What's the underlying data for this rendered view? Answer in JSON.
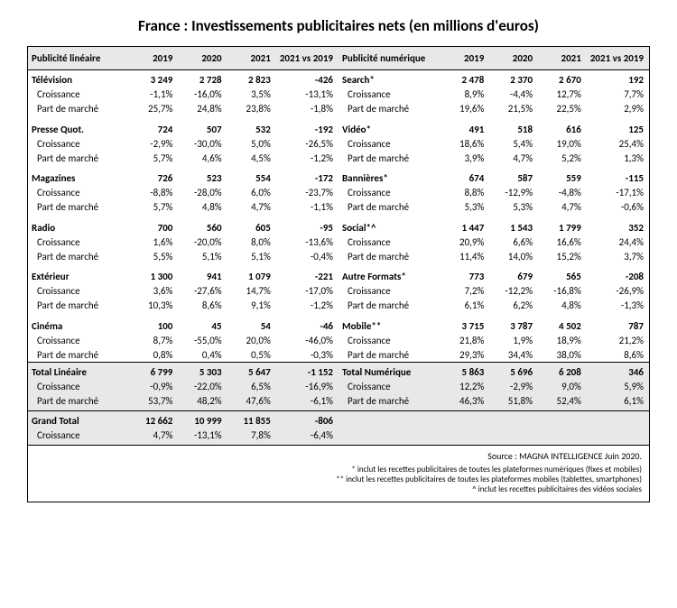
{
  "title": "France : Investissements publicitaires nets (en millions d'euros)",
  "col_headers": {
    "linear_label": "Publicité linéaire",
    "digital_label": "Publicité numérique",
    "y2019": "2019",
    "y2020": "2020",
    "y2021": "2021",
    "delta": "2021 vs 2019"
  },
  "row_sub_labels": {
    "growth": "Croissance",
    "share": "Part de marché"
  },
  "linear": [
    {
      "name": "Télévision",
      "v2019": "3 249",
      "v2020": "2 728",
      "v2021": "2 823",
      "delta": "-426",
      "g2019": "-1,1%",
      "g2020": "-16,0%",
      "g2021": "3,5%",
      "gdelta": "-13,1%",
      "s2019": "25,7%",
      "s2020": "24,8%",
      "s2021": "23,8%",
      "sdelta": "-1,8%"
    },
    {
      "name": "Presse Quot.",
      "v2019": "724",
      "v2020": "507",
      "v2021": "532",
      "delta": "-192",
      "g2019": "-2,9%",
      "g2020": "-30,0%",
      "g2021": "5,0%",
      "gdelta": "-26,5%",
      "s2019": "5,7%",
      "s2020": "4,6%",
      "s2021": "4,5%",
      "sdelta": "-1,2%"
    },
    {
      "name": "Magazines",
      "v2019": "726",
      "v2020": "523",
      "v2021": "554",
      "delta": "-172",
      "g2019": "-8,8%",
      "g2020": "-28,0%",
      "g2021": "6,0%",
      "gdelta": "-23,7%",
      "s2019": "5,7%",
      "s2020": "4,8%",
      "s2021": "4,7%",
      "sdelta": "-1,1%"
    },
    {
      "name": "Radio",
      "v2019": "700",
      "v2020": "560",
      "v2021": "605",
      "delta": "-95",
      "g2019": "1,6%",
      "g2020": "-20,0%",
      "g2021": "8,0%",
      "gdelta": "-13,6%",
      "s2019": "5,5%",
      "s2020": "5,1%",
      "s2021": "5,1%",
      "sdelta": "-0,4%"
    },
    {
      "name": "Extérieur",
      "v2019": "1 300",
      "v2020": "941",
      "v2021": "1 079",
      "delta": "-221",
      "g2019": "3,6%",
      "g2020": "-27,6%",
      "g2021": "14,7%",
      "gdelta": "-17,0%",
      "s2019": "10,3%",
      "s2020": "8,6%",
      "s2021": "9,1%",
      "sdelta": "-1,2%"
    },
    {
      "name": "Cinéma",
      "v2019": "100",
      "v2020": "45",
      "v2021": "54",
      "delta": "-46",
      "g2019": "8,7%",
      "g2020": "-55,0%",
      "g2021": "20,0%",
      "gdelta": "-46,0%",
      "s2019": "0,8%",
      "s2020": "0,4%",
      "s2021": "0,5%",
      "sdelta": "-0,3%"
    }
  ],
  "linear_total": {
    "name": "Total Linéaire",
    "v2019": "6 799",
    "v2020": "5 303",
    "v2021": "5 647",
    "delta": "-1 152",
    "g2019": "-0,9%",
    "g2020": "-22,0%",
    "g2021": "6,5%",
    "gdelta": "-16,9%",
    "s2019": "53,7%",
    "s2020": "48,2%",
    "s2021": "47,6%",
    "sdelta": "-6,1%"
  },
  "digital": [
    {
      "name": "Search*",
      "v2019": "2 478",
      "v2020": "2 370",
      "v2021": "2 670",
      "delta": "192",
      "g2019": "8,9%",
      "g2020": "-4,4%",
      "g2021": "12,7%",
      "gdelta": "7,7%",
      "s2019": "19,6%",
      "s2020": "21,5%",
      "s2021": "22,5%",
      "sdelta": "2,9%"
    },
    {
      "name": "Vidéo*",
      "v2019": "491",
      "v2020": "518",
      "v2021": "616",
      "delta": "125",
      "g2019": "18,6%",
      "g2020": "5,4%",
      "g2021": "19,0%",
      "gdelta": "25,4%",
      "s2019": "3,9%",
      "s2020": "4,7%",
      "s2021": "5,2%",
      "sdelta": "1,3%"
    },
    {
      "name": "Bannières*",
      "v2019": "674",
      "v2020": "587",
      "v2021": "559",
      "delta": "-115",
      "g2019": "8,8%",
      "g2020": "-12,9%",
      "g2021": "-4,8%",
      "gdelta": "-17,1%",
      "s2019": "5,3%",
      "s2020": "5,3%",
      "s2021": "4,7%",
      "sdelta": "-0,6%"
    },
    {
      "name": "Social*^",
      "v2019": "1 447",
      "v2020": "1 543",
      "v2021": "1 799",
      "delta": "352",
      "g2019": "20,9%",
      "g2020": "6,6%",
      "g2021": "16,6%",
      "gdelta": "24,4%",
      "s2019": "11,4%",
      "s2020": "14,0%",
      "s2021": "15,2%",
      "sdelta": "3,7%"
    },
    {
      "name": "Autre Formats*",
      "v2019": "773",
      "v2020": "679",
      "v2021": "565",
      "delta": "-208",
      "g2019": "7,2%",
      "g2020": "-12,2%",
      "g2021": "-16,8%",
      "gdelta": "-26,9%",
      "s2019": "6,1%",
      "s2020": "6,2%",
      "s2021": "4,8%",
      "sdelta": "-1,3%"
    },
    {
      "name": "Mobile**",
      "v2019": "3 715",
      "v2020": "3 787",
      "v2021": "4 502",
      "delta": "787",
      "g2019": "21,8%",
      "g2020": "1,9%",
      "g2021": "18,9%",
      "gdelta": "21,2%",
      "s2019": "29,3%",
      "s2020": "34,4%",
      "s2021": "38,0%",
      "sdelta": "8,6%"
    }
  ],
  "digital_total": {
    "name": "Total Numérique",
    "v2019": "5 863",
    "v2020": "5 696",
    "v2021": "6 208",
    "delta": "346",
    "g2019": "12,2%",
    "g2020": "-2,9%",
    "g2021": "9,0%",
    "gdelta": "5,9%",
    "s2019": "46,3%",
    "s2020": "51,8%",
    "s2021": "52,4%",
    "sdelta": "6,1%"
  },
  "grand_total": {
    "name": "Grand Total",
    "v2019": "12 662",
    "v2020": "10 999",
    "v2021": "11 855",
    "delta": "-806",
    "g2019": "4,7%",
    "g2020": "-13,1%",
    "g2021": "7,8%",
    "gdelta": "-6,4%"
  },
  "notes": {
    "source": "Source : MAGNA INTELLIGENCE Juin 2020.",
    "n1": "* inclut les recettes publicitaires de toutes les plateformes numériques (fixes et mobiles)",
    "n2": "** inclut les recettes publicitaires de toutes les plateformes mobiles (tablettes, smartphones)",
    "n3": "^ inclut les recettes publicitaires des vidéos sociales"
  }
}
